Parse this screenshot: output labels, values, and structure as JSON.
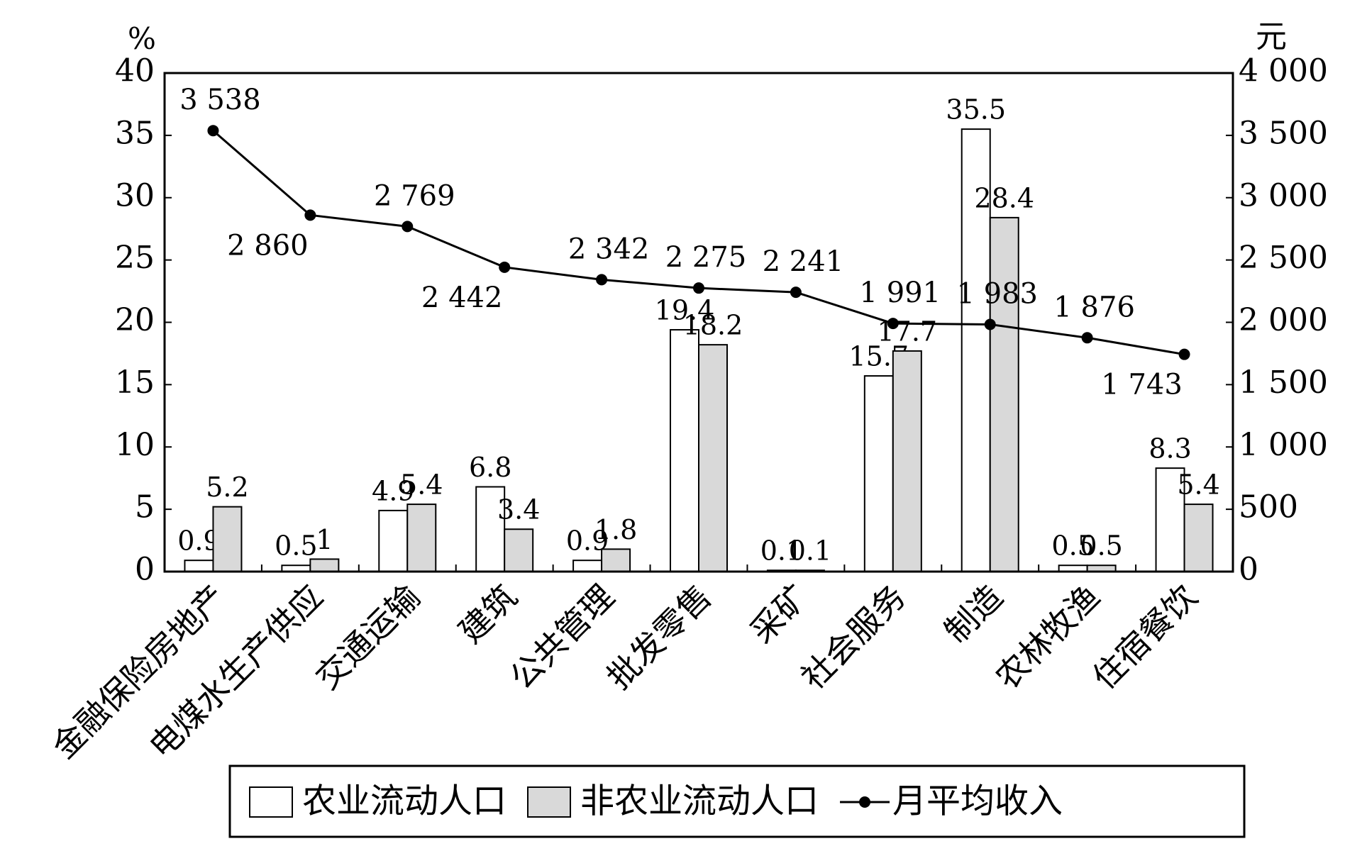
{
  "chart_data": {
    "type": "bar-line",
    "y_label": "%",
    "y2_label": "元",
    "categories": [
      "金融保险房地产",
      "电煤水生产供应",
      "交通运输",
      "建筑",
      "公共管理",
      "批发零售",
      "采矿",
      "社会服务",
      "制造",
      "农林牧渔",
      "住宿餐饮"
    ],
    "series": [
      {
        "name": "农业流动人口",
        "type": "bar",
        "color": "#ffffff",
        "values": [
          0.9,
          0.5,
          4.9,
          6.8,
          0.9,
          19.4,
          0.1,
          15.7,
          35.5,
          0.5,
          8.3
        ]
      },
      {
        "name": "非农业流动人口",
        "type": "bar",
        "color": "#d9d9d9",
        "values": [
          5.2,
          1,
          5.4,
          3.4,
          1.8,
          18.2,
          0.1,
          17.7,
          28.4,
          0.5,
          5.4
        ]
      },
      {
        "name": "月平均收入",
        "type": "line",
        "color": "#000000",
        "axis": "y2",
        "values": [
          3538,
          2860,
          2769,
          2442,
          2342,
          2275,
          2241,
          1991,
          1983,
          1876,
          1743
        ],
        "value_labels": [
          "3 538",
          "2 860",
          "2 769",
          "2 442",
          "2 342",
          "2 275",
          "2 241",
          "1 991",
          "1 983",
          "1 876",
          "1 743"
        ]
      }
    ],
    "ylim": [
      0,
      40
    ],
    "yticks": [
      0,
      5,
      10,
      15,
      20,
      25,
      30,
      35,
      40
    ],
    "y2lim": [
      0,
      4000
    ],
    "y2ticks": [
      0,
      500,
      {
        "value": 1000,
        "label": "1 000"
      },
      {
        "value": 1500,
        "label": "1 500"
      },
      {
        "value": 2000,
        "label": "2 000"
      },
      {
        "value": 2500,
        "label": "2 500"
      },
      {
        "value": 3000,
        "label": "3 000"
      },
      {
        "value": 3500,
        "label": "3 500"
      },
      {
        "value": 4000,
        "label": "4 000"
      }
    ],
    "legend": "bottom"
  }
}
